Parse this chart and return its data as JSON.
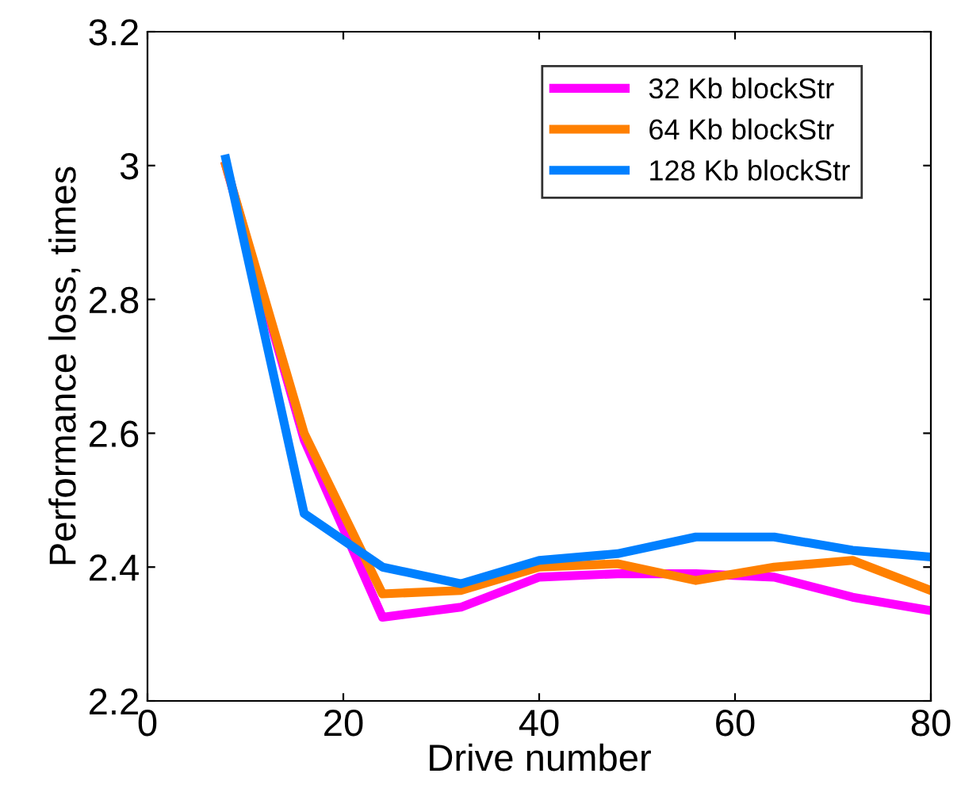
{
  "chart_data": {
    "type": "line",
    "xlabel": "Drive number",
    "ylabel": "Performance loss, times",
    "x": [
      8,
      16,
      24,
      32,
      40,
      48,
      56,
      64,
      72,
      80
    ],
    "series": [
      {
        "name": "32 Kb blockStr",
        "color": "#ff00ff",
        "values": [
          3.0,
          2.59,
          2.325,
          2.34,
          2.385,
          2.39,
          2.39,
          2.385,
          2.355,
          2.335
        ]
      },
      {
        "name": "64 Kb blockStr",
        "color": "#ff8000",
        "values": [
          3.0,
          2.6,
          2.36,
          2.365,
          2.4,
          2.405,
          2.38,
          2.4,
          2.41,
          2.365
        ]
      },
      {
        "name": "128 Kb blockStr",
        "color": "#0080ff",
        "values": [
          3.01,
          2.48,
          2.4,
          2.375,
          2.41,
          2.42,
          2.445,
          2.445,
          2.425,
          2.415
        ]
      }
    ],
    "xlim": [
      0,
      80
    ],
    "xticks": [
      0,
      20,
      40,
      60,
      80
    ],
    "ylim": [
      2.2,
      3.2
    ],
    "yticks": [
      2.2,
      2.4,
      2.6,
      2.8,
      3,
      3.2
    ],
    "grid": false,
    "legend": "top right",
    "marker": "none",
    "line_style": "solid"
  }
}
